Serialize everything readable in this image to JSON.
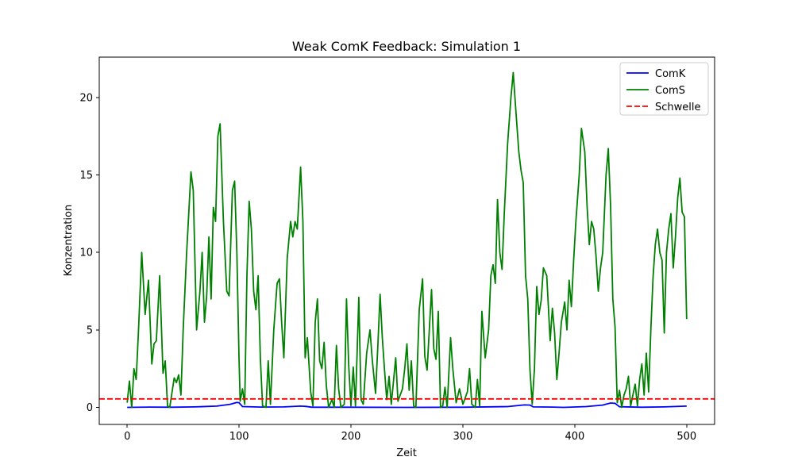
{
  "chart_data": {
    "type": "line",
    "title": "Weak ComK Feedback: Simulation 1",
    "xlabel": "Zeit",
    "ylabel": "Konzentration",
    "xlim": [
      -25,
      525
    ],
    "ylim": [
      -1.1,
      22.6
    ],
    "x_ticks": [
      0,
      100,
      200,
      300,
      400,
      500
    ],
    "y_ticks": [
      0,
      5,
      10,
      15,
      20
    ],
    "grid": false,
    "legend_position": "top-right",
    "series": [
      {
        "name": "ComK",
        "color": "#0000ff",
        "style": "solid",
        "points": [
          [
            0,
            0
          ],
          [
            20,
            0.02
          ],
          [
            40,
            0.01
          ],
          [
            60,
            0.03
          ],
          [
            80,
            0.08
          ],
          [
            92,
            0.2
          ],
          [
            98,
            0.32
          ],
          [
            100,
            0.3
          ],
          [
            103,
            0.05
          ],
          [
            120,
            0.02
          ],
          [
            140,
            0.03
          ],
          [
            155,
            0.08
          ],
          [
            160,
            0.06
          ],
          [
            165,
            0.01
          ],
          [
            200,
            0.01
          ],
          [
            250,
            0
          ],
          [
            300,
            0.01
          ],
          [
            340,
            0.05
          ],
          [
            355,
            0.16
          ],
          [
            360,
            0.15
          ],
          [
            363,
            0.03
          ],
          [
            380,
            0.02
          ],
          [
            390,
            0
          ],
          [
            410,
            0.05
          ],
          [
            425,
            0.15
          ],
          [
            432,
            0.28
          ],
          [
            436,
            0.26
          ],
          [
            440,
            0.04
          ],
          [
            460,
            0.01
          ],
          [
            480,
            0.03
          ],
          [
            500,
            0.08
          ]
        ]
      },
      {
        "name": "ComS",
        "color": "#008000",
        "style": "solid",
        "points": [
          [
            0,
            0.3
          ],
          [
            2,
            1.7
          ],
          [
            4,
            0
          ],
          [
            6,
            2.5
          ],
          [
            8,
            1.8
          ],
          [
            10,
            4.8
          ],
          [
            13,
            10
          ],
          [
            16,
            6
          ],
          [
            19,
            8.2
          ],
          [
            22,
            2.8
          ],
          [
            24,
            4.1
          ],
          [
            26,
            4.3
          ],
          [
            29,
            8.5
          ],
          [
            32,
            2.2
          ],
          [
            34,
            3
          ],
          [
            36,
            0.1
          ],
          [
            38,
            0
          ],
          [
            42,
            1.9
          ],
          [
            44,
            1.6
          ],
          [
            46,
            2.1
          ],
          [
            48,
            0.8
          ],
          [
            50,
            5
          ],
          [
            53,
            9.8
          ],
          [
            55,
            12.5
          ],
          [
            57,
            15.2
          ],
          [
            59,
            14
          ],
          [
            62,
            5
          ],
          [
            65,
            7.5
          ],
          [
            67,
            10
          ],
          [
            69,
            5.5
          ],
          [
            71,
            7.2
          ],
          [
            73,
            11
          ],
          [
            75,
            7
          ],
          [
            77,
            12.9
          ],
          [
            79,
            12
          ],
          [
            81,
            17.5
          ],
          [
            83,
            18.3
          ],
          [
            86,
            12
          ],
          [
            89,
            7.5
          ],
          [
            91,
            7.2
          ],
          [
            94,
            14
          ],
          [
            96,
            14.6
          ],
          [
            98,
            10
          ],
          [
            100,
            3
          ],
          [
            101,
            0.4
          ],
          [
            103,
            1.2
          ],
          [
            105,
            0.2
          ],
          [
            107,
            8.5
          ],
          [
            109,
            13.3
          ],
          [
            111,
            11.5
          ],
          [
            113,
            7.5
          ],
          [
            115,
            6.3
          ],
          [
            117,
            8.5
          ],
          [
            119,
            3.2
          ],
          [
            121,
            0.1
          ],
          [
            124,
            0
          ],
          [
            126,
            3
          ],
          [
            128,
            0.2
          ],
          [
            131,
            5
          ],
          [
            134,
            8
          ],
          [
            136,
            8.3
          ],
          [
            138,
            5.5
          ],
          [
            140,
            3.2
          ],
          [
            143,
            9.6
          ],
          [
            146,
            12
          ],
          [
            148,
            11
          ],
          [
            150,
            12
          ],
          [
            152,
            11.5
          ],
          [
            155,
            15.5
          ],
          [
            157,
            12
          ],
          [
            159,
            3.2
          ],
          [
            161,
            4.5
          ],
          [
            164,
            1
          ],
          [
            166,
            0.1
          ],
          [
            168,
            5.5
          ],
          [
            170,
            7
          ],
          [
            172,
            3
          ],
          [
            174,
            2.5
          ],
          [
            176,
            4.2
          ],
          [
            178,
            1.4
          ],
          [
            180,
            0
          ],
          [
            183,
            0.5
          ],
          [
            185,
            0
          ],
          [
            187,
            4
          ],
          [
            189,
            1.2
          ],
          [
            191,
            0
          ],
          [
            194,
            0.2
          ],
          [
            196,
            7
          ],
          [
            198,
            2.7
          ],
          [
            200,
            0.1
          ],
          [
            202,
            2.6
          ],
          [
            204,
            0.1
          ],
          [
            207,
            7.1
          ],
          [
            209,
            0.5
          ],
          [
            211,
            0.2
          ],
          [
            214,
            3.5
          ],
          [
            217,
            5
          ],
          [
            219,
            3.1
          ],
          [
            222,
            0.9
          ],
          [
            224,
            4
          ],
          [
            226,
            7.3
          ],
          [
            228,
            4.5
          ],
          [
            230,
            2.4
          ],
          [
            232,
            0.5
          ],
          [
            234,
            2
          ],
          [
            236,
            0.2
          ],
          [
            240,
            3.2
          ],
          [
            242,
            0.4
          ],
          [
            246,
            1.2
          ],
          [
            248,
            2.5
          ],
          [
            250,
            4.1
          ],
          [
            252,
            1.1
          ],
          [
            254,
            3
          ],
          [
            256,
            0.1
          ],
          [
            258,
            0
          ],
          [
            261,
            6.3
          ],
          [
            264,
            8.3
          ],
          [
            266,
            3.3
          ],
          [
            268,
            2.4
          ],
          [
            270,
            5
          ],
          [
            272,
            7.6
          ],
          [
            274,
            3.8
          ],
          [
            276,
            3.1
          ],
          [
            278,
            6.2
          ],
          [
            280,
            0
          ],
          [
            282,
            0.1
          ],
          [
            284,
            1.3
          ],
          [
            286,
            0
          ],
          [
            289,
            4.5
          ],
          [
            291,
            2.5
          ],
          [
            294,
            0.3
          ],
          [
            297,
            1.2
          ],
          [
            300,
            0.2
          ],
          [
            304,
            1
          ],
          [
            306,
            2.5
          ],
          [
            308,
            0.2
          ],
          [
            311,
            0
          ],
          [
            313,
            1.8
          ],
          [
            315,
            0.1
          ],
          [
            317,
            6.2
          ],
          [
            320,
            3.2
          ],
          [
            323,
            5
          ],
          [
            325,
            8.5
          ],
          [
            327,
            9.2
          ],
          [
            329,
            8
          ],
          [
            331,
            13.4
          ],
          [
            333,
            10
          ],
          [
            335,
            8.9
          ],
          [
            337,
            12.5
          ],
          [
            340,
            17
          ],
          [
            343,
            20
          ],
          [
            345,
            21.6
          ],
          [
            347,
            19.5
          ],
          [
            350,
            16.5
          ],
          [
            352,
            15.3
          ],
          [
            354,
            14.5
          ],
          [
            356,
            8.5
          ],
          [
            358,
            7
          ],
          [
            360,
            2.4
          ],
          [
            362,
            0.2
          ],
          [
            364,
            2.5
          ],
          [
            366,
            7.8
          ],
          [
            368,
            6
          ],
          [
            370,
            6.9
          ],
          [
            372,
            9
          ],
          [
            375,
            8.5
          ],
          [
            378,
            4.3
          ],
          [
            380,
            6.4
          ],
          [
            382,
            4.8
          ],
          [
            384,
            1.8
          ],
          [
            386,
            3.5
          ],
          [
            388,
            5.5
          ],
          [
            391,
            6.8
          ],
          [
            393,
            5
          ],
          [
            395,
            8.2
          ],
          [
            397,
            6.5
          ],
          [
            399,
            9.5
          ],
          [
            401,
            12
          ],
          [
            404,
            15
          ],
          [
            406,
            18
          ],
          [
            409,
            16.5
          ],
          [
            411,
            13
          ],
          [
            413,
            10.5
          ],
          [
            415,
            12
          ],
          [
            417,
            11.5
          ],
          [
            419,
            9.8
          ],
          [
            421,
            7.5
          ],
          [
            423,
            9
          ],
          [
            425,
            10
          ],
          [
            428,
            15
          ],
          [
            430,
            16.7
          ],
          [
            432,
            13
          ],
          [
            434,
            7
          ],
          [
            436,
            5.2
          ],
          [
            438,
            0.3
          ],
          [
            440,
            1.1
          ],
          [
            442,
            0
          ],
          [
            444,
            0.8
          ],
          [
            446,
            1.2
          ],
          [
            448,
            2
          ],
          [
            450,
            0.1
          ],
          [
            452,
            0.8
          ],
          [
            454,
            1.5
          ],
          [
            456,
            0.1
          ],
          [
            458,
            1.8
          ],
          [
            460,
            2.8
          ],
          [
            462,
            0.8
          ],
          [
            464,
            3.5
          ],
          [
            466,
            1
          ],
          [
            468,
            5
          ],
          [
            470,
            8.4
          ],
          [
            472,
            10.5
          ],
          [
            474,
            11.5
          ],
          [
            476,
            10
          ],
          [
            478,
            9.5
          ],
          [
            480,
            4.8
          ],
          [
            482,
            10
          ],
          [
            484,
            11.5
          ],
          [
            486,
            12.5
          ],
          [
            488,
            9
          ],
          [
            490,
            11
          ],
          [
            492,
            13.5
          ],
          [
            494,
            14.8
          ],
          [
            496,
            12.6
          ],
          [
            498,
            12.3
          ],
          [
            500,
            5.7
          ]
        ]
      },
      {
        "name": "Schwelle",
        "color": "#ff0000",
        "style": "dashed",
        "constant": 0.55
      }
    ]
  }
}
